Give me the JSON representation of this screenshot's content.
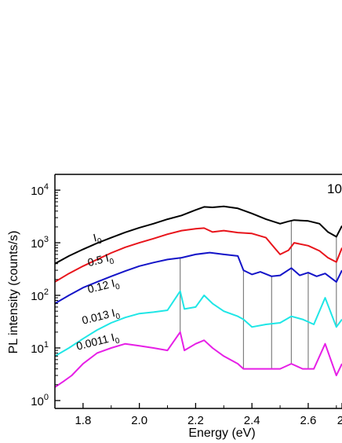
{
  "chart_data": {
    "type": "line",
    "title": "",
    "xlabel": "Energy (eV)",
    "ylabel": "PL intensity (counts/s)",
    "xlim": [
      1.7,
      2.72
    ],
    "ylim_log10": [
      -0.15,
      4.3
    ],
    "yscale": "log",
    "corner_label": "10",
    "x_ticks": [
      {
        "value": 1.8,
        "label": "1.8"
      },
      {
        "value": 2.0,
        "label": "2.0"
      },
      {
        "value": 2.2,
        "label": "2.2"
      },
      {
        "value": 2.4,
        "label": "2.4"
      },
      {
        "value": 2.6,
        "label": "2.6"
      },
      {
        "value": 2.72,
        "label": "2."
      }
    ],
    "y_ticks": [
      {
        "exp": 0,
        "base": "10",
        "sup": "0"
      },
      {
        "exp": 1,
        "base": "10",
        "sup": "1"
      },
      {
        "exp": 2,
        "base": "10",
        "sup": "2"
      },
      {
        "exp": 3,
        "base": "10",
        "sup": "3"
      },
      {
        "exp": 4,
        "base": "10",
        "sup": "4"
      }
    ],
    "series": [
      {
        "name": "I0",
        "label_main": "I",
        "label_sub": "0",
        "color": "#000000",
        "label_x": 1.84,
        "label_logy": 3.02,
        "x": [
          1.7,
          1.75,
          1.8,
          1.85,
          1.9,
          1.95,
          2.0,
          2.05,
          2.1,
          2.15,
          2.2,
          2.23,
          2.26,
          2.3,
          2.35,
          2.4,
          2.45,
          2.5,
          2.53,
          2.55,
          2.6,
          2.64,
          2.67,
          2.7,
          2.72
        ],
        "y": [
          400,
          560,
          750,
          980,
          1250,
          1580,
          1930,
          2300,
          2800,
          3300,
          4200,
          4800,
          4700,
          4900,
          4500,
          3600,
          2800,
          2300,
          2550,
          2700,
          2600,
          2300,
          1600,
          1300,
          2100
        ]
      },
      {
        "name": "0.5 I0",
        "label_main": "0.5 I",
        "label_sub": "0",
        "color": "#e8141b",
        "label_x": 1.82,
        "label_logy": 2.55,
        "x": [
          1.7,
          1.75,
          1.8,
          1.85,
          1.9,
          1.95,
          2.0,
          2.05,
          2.1,
          2.15,
          2.2,
          2.23,
          2.26,
          2.3,
          2.35,
          2.4,
          2.45,
          2.48,
          2.5,
          2.53,
          2.55,
          2.6,
          2.64,
          2.67,
          2.7,
          2.72
        ],
        "y": [
          180,
          260,
          360,
          480,
          640,
          820,
          1000,
          1200,
          1450,
          1700,
          1850,
          1900,
          1600,
          1700,
          1560,
          1500,
          1250,
          800,
          600,
          720,
          1000,
          880,
          700,
          520,
          430,
          800
        ]
      },
      {
        "name": "0.12 I0",
        "label_main": "0.12 I",
        "label_sub": "0",
        "color": "#1414c8",
        "label_x": 1.82,
        "label_logy": 2.04,
        "x": [
          1.7,
          1.75,
          1.8,
          1.85,
          1.9,
          1.95,
          2.0,
          2.05,
          2.1,
          2.15,
          2.2,
          2.25,
          2.3,
          2.35,
          2.37,
          2.4,
          2.43,
          2.47,
          2.5,
          2.54,
          2.57,
          2.6,
          2.63,
          2.66,
          2.7,
          2.72
        ],
        "y": [
          70,
          100,
          140,
          180,
          230,
          290,
          360,
          420,
          480,
          520,
          600,
          650,
          600,
          560,
          300,
          250,
          280,
          230,
          240,
          330,
          240,
          270,
          230,
          260,
          180,
          300
        ]
      },
      {
        "name": "0.013 I0",
        "label_main": "0.013 I",
        "label_sub": "0",
        "color": "#1fe6e6",
        "label_x": 1.8,
        "label_logy": 1.45,
        "x": [
          1.7,
          1.75,
          1.8,
          1.85,
          1.9,
          1.95,
          2.0,
          2.05,
          2.1,
          2.145,
          2.16,
          2.2,
          2.23,
          2.26,
          2.3,
          2.35,
          2.37,
          2.4,
          2.45,
          2.5,
          2.54,
          2.58,
          2.62,
          2.66,
          2.7,
          2.72
        ],
        "y": [
          7,
          10,
          15,
          22,
          30,
          38,
          45,
          48,
          52,
          120,
          55,
          60,
          100,
          70,
          50,
          40,
          35,
          25,
          28,
          30,
          40,
          35,
          28,
          90,
          25,
          35
        ]
      },
      {
        "name": "0.0011 I0",
        "label_main": "0.0011 I",
        "label_sub": "0",
        "color": "#e61fe6",
        "label_x": 1.78,
        "label_logy": 0.96,
        "x": [
          1.7,
          1.73,
          1.76,
          1.8,
          1.85,
          1.9,
          1.95,
          2.0,
          2.05,
          2.1,
          2.145,
          2.16,
          2.2,
          2.23,
          2.26,
          2.3,
          2.35,
          2.37,
          2.4,
          2.45,
          2.5,
          2.54,
          2.58,
          2.62,
          2.66,
          2.7,
          2.72
        ],
        "y": [
          1.8,
          2.3,
          3.0,
          5,
          8,
          10,
          12,
          11,
          10,
          9,
          20,
          9,
          12,
          14,
          10,
          7,
          5,
          4,
          4,
          4,
          4,
          5,
          4,
          4,
          12,
          3,
          5
        ]
      }
    ],
    "marker_lines": [
      {
        "x": 2.145,
        "top_series": 2,
        "bottom_series": 4,
        "color": "#808080"
      },
      {
        "x": 2.37,
        "top_series": 2,
        "bottom_series": 4,
        "color": "#808080"
      },
      {
        "x": 2.47,
        "top_series": 2,
        "bottom_series": 4,
        "color": "#808080"
      },
      {
        "x": 2.54,
        "top_series": 0,
        "bottom_series": 4,
        "color": "#808080"
      },
      {
        "x": 2.6,
        "top_series": 2,
        "bottom_series": 4,
        "color": "#808080"
      },
      {
        "x": 2.7,
        "top_series": 0,
        "bottom_series": 3,
        "color": "#808080"
      }
    ]
  }
}
